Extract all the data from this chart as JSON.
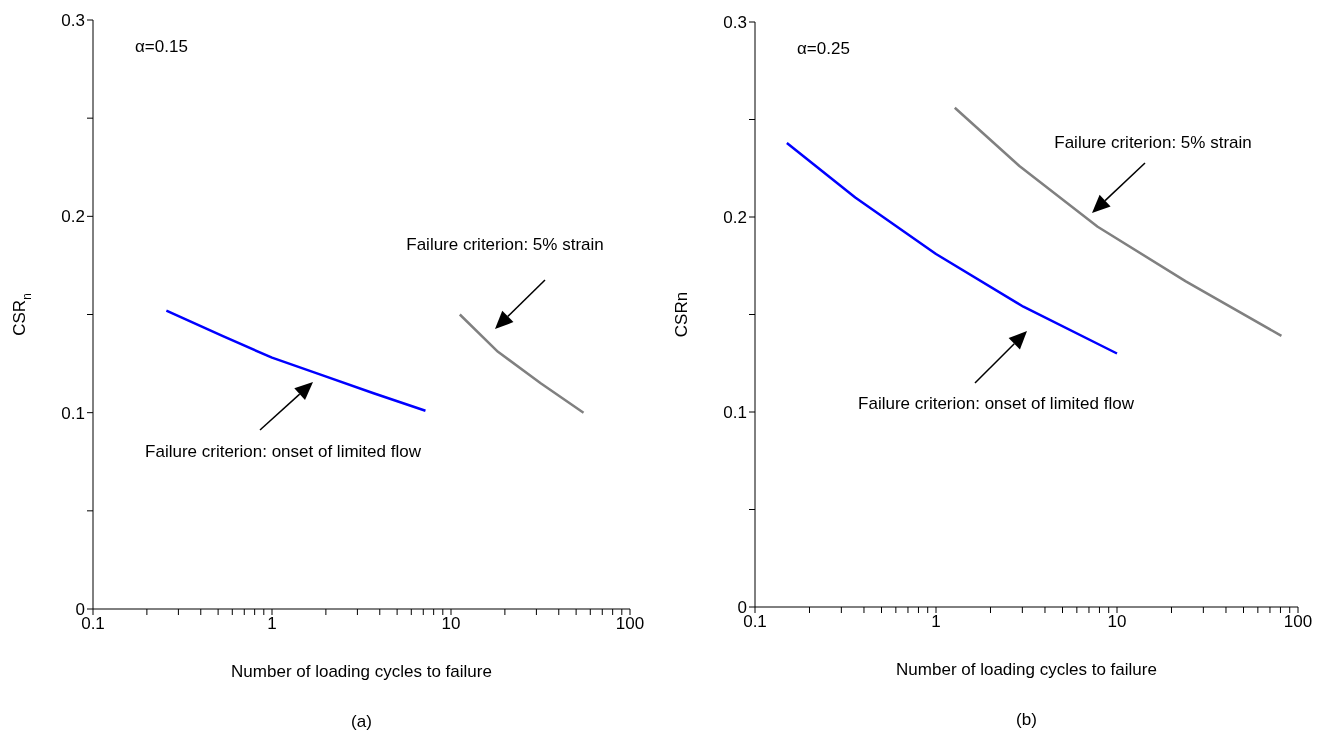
{
  "chart_data": [
    {
      "type": "line",
      "xlabel": "Number of loading cycles to failure",
      "ylabel": "CSR$_{n}$",
      "log": "x",
      "xlim": [
        0.1,
        100
      ],
      "ylim": [
        0,
        0.3
      ],
      "xticks": [
        0.1,
        {
          "value": 0.2,
          "label": null
        },
        {
          "value": 0.3,
          "label": null
        },
        {
          "value": 0.4,
          "label": null
        },
        {
          "value": 0.5,
          "label": null
        },
        {
          "value": 0.6,
          "label": null
        },
        {
          "value": 0.7,
          "label": null
        },
        {
          "value": 0.8,
          "label": null
        },
        {
          "value": 0.9,
          "label": null
        },
        1,
        {
          "value": 2,
          "label": null
        },
        {
          "value": 3,
          "label": null
        },
        {
          "value": 4,
          "label": null
        },
        {
          "value": 5,
          "label": null
        },
        {
          "value": 6,
          "label": null
        },
        {
          "value": 7,
          "label": null
        },
        {
          "value": 8,
          "label": null
        },
        {
          "value": 9,
          "label": null
        },
        10,
        {
          "value": 20,
          "label": null
        },
        {
          "value": 30,
          "label": null
        },
        {
          "value": 40,
          "label": null
        },
        {
          "value": 50,
          "label": null
        },
        {
          "value": 60,
          "label": null
        },
        {
          "value": 70,
          "label": null
        },
        {
          "value": 80,
          "label": null
        },
        {
          "value": 90,
          "label": null
        },
        100
      ],
      "yticks": [
        0,
        {
          "value": 0.05,
          "label": null
        },
        0.1,
        {
          "value": 0.15,
          "label": null
        },
        0.2,
        {
          "value": 0.25,
          "label": null
        },
        0.3
      ],
      "series": [
        {
          "color": "#0000ff",
          "x": [
            0.257,
            0.532,
            1,
            1.92,
            3.66,
            7.2
          ],
          "values": [
            0.152,
            0.139,
            0.128,
            0.119,
            0.11,
            0.101
          ]
        },
        {
          "color": "#808080",
          "x": [
            11.2,
            18.3,
            31.7,
            55
          ],
          "values": [
            0.15,
            0.131,
            0.115,
            0.1
          ]
        }
      ],
      "annotations": [
        "α=0.15",
        "(a)",
        "Failure criterion: onset of limited flow",
        "Failure criterion: 5% strain"
      ]
    },
    {
      "type": "line",
      "xlabel": "Number of loading cycles to failure",
      "ylabel": "CSRn",
      "log": "x",
      "xlim": [
        0.1,
        100
      ],
      "ylim": [
        0,
        0.3
      ],
      "xticks": [
        0.1,
        {
          "value": 0.2,
          "label": null
        },
        {
          "value": 0.3,
          "label": null
        },
        {
          "value": 0.4,
          "label": null
        },
        {
          "value": 0.5,
          "label": null
        },
        {
          "value": 0.6,
          "label": null
        },
        {
          "value": 0.7,
          "label": null
        },
        {
          "value": 0.8,
          "label": null
        },
        {
          "value": 0.9,
          "label": null
        },
        1,
        {
          "value": 2,
          "label": null
        },
        {
          "value": 3,
          "label": null
        },
        {
          "value": 4,
          "label": null
        },
        {
          "value": 5,
          "label": null
        },
        {
          "value": 6,
          "label": null
        },
        {
          "value": 7,
          "label": null
        },
        {
          "value": 8,
          "label": null
        },
        {
          "value": 9,
          "label": null
        },
        10,
        {
          "value": 20,
          "label": null
        },
        {
          "value": 30,
          "label": null
        },
        {
          "value": 40,
          "label": null
        },
        {
          "value": 50,
          "label": null
        },
        {
          "value": 60,
          "label": null
        },
        {
          "value": 70,
          "label": null
        },
        {
          "value": 80,
          "label": null
        },
        {
          "value": 90,
          "label": null
        },
        100
      ],
      "yticks": [
        0,
        {
          "value": 0.05,
          "label": null
        },
        0.1,
        {
          "value": 0.15,
          "label": null
        },
        0.2,
        {
          "value": 0.25,
          "label": null
        },
        0.3
      ],
      "series": [
        {
          "color": "#0000ff",
          "x": [
            0.15,
            0.358,
            1,
            3.04,
            10
          ],
          "values": [
            0.238,
            0.21,
            0.181,
            0.154,
            0.13
          ]
        },
        {
          "color": "#808080",
          "x": [
            1.27,
            2.9,
            7.82,
            24,
            81
          ],
          "values": [
            0.256,
            0.226,
            0.195,
            0.167,
            0.139
          ]
        }
      ],
      "annotations": [
        "α=0.25",
        "(b)",
        "Failure criterion: 5% strain",
        "Failure criterion: onset of limited flow"
      ]
    }
  ]
}
